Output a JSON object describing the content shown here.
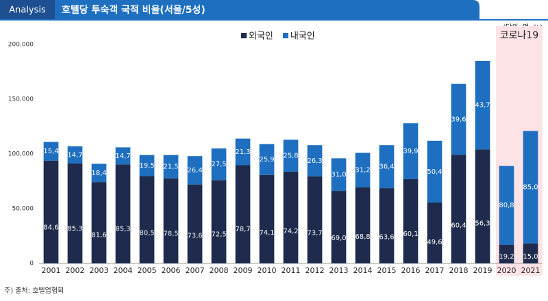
{
  "header": {
    "tag": "Analysis",
    "title": "호텔당 투숙객 국적 비율(서울/5성)"
  },
  "chart_data": {
    "type": "stacked-bar",
    "unit": "(단위: 명, %)",
    "categories": [
      "2001",
      "2002",
      "2003",
      "2004",
      "2005",
      "2006",
      "2007",
      "2008",
      "2009",
      "2010",
      "2011",
      "2012",
      "2013",
      "2014",
      "2015",
      "2016",
      "2017",
      "2018",
      "2019",
      "2020",
      "2021"
    ],
    "series": [
      {
        "name": "외국인",
        "color": "#1f2b4d",
        "values": [
          93900,
          91300,
          74300,
          90400,
          79700,
          77700,
          72100,
          76100,
          89700,
          80800,
          83800,
          79600,
          66200,
          69500,
          68700,
          76900,
          55600,
          99100,
          104200,
          17100,
          18200
        ],
        "labels": [
          "84,6",
          "85,3",
          "81,6",
          "85,3",
          "80,5",
          "78,5",
          "73,6",
          "72,5",
          "78,7",
          "74,1",
          "74,2",
          "73,7",
          "69,0",
          "68,8",
          "63,6",
          "60,1",
          "49,6",
          "60,4",
          "56,3",
          "19,2",
          "15,0"
        ]
      },
      {
        "name": "내국인",
        "color": "#1e6fc0",
        "values": [
          17100,
          15700,
          16700,
          15600,
          19300,
          21300,
          25900,
          28900,
          24300,
          28200,
          29200,
          28400,
          29800,
          31500,
          39300,
          51100,
          56400,
          64900,
          80800,
          71900,
          102800
        ],
        "labels": [
          "15,4",
          "14,7",
          "18,4",
          "14,7",
          "19,5",
          "21,5",
          "26,4",
          "27,5",
          "21,3",
          "25,9",
          "25,8",
          "26,3",
          "31,0",
          "31,2",
          "36,4",
          "39,9",
          "50,4",
          "39,6",
          "43,7",
          "80,8",
          "85,0"
        ]
      }
    ],
    "ylim": [
      0,
      200000
    ],
    "yticks": [
      0,
      {
        "value": 50000,
        "label": "50,000"
      },
      {
        "value": 100000,
        "label": "100,000"
      },
      {
        "value": 150000,
        "label": "150,000"
      },
      {
        "value": 200000,
        "label": "200,000"
      }
    ],
    "legend": "top",
    "highlight": {
      "text": "코로나19",
      "from": "2020",
      "to": "2021"
    },
    "source": "주) 출처: 호텔업협회"
  }
}
